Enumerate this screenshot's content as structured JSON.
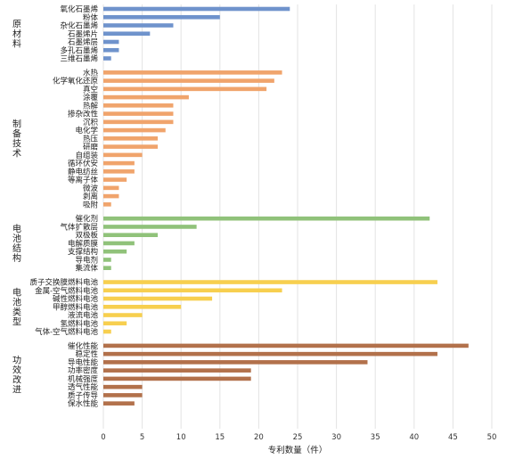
{
  "chart_data": {
    "type": "bar",
    "orientation": "horizontal",
    "xlabel": "专利数量（件）",
    "xlim": [
      0,
      50
    ],
    "xticks": [
      0,
      5,
      10,
      15,
      20,
      25,
      30,
      35,
      40,
      45,
      50
    ],
    "grid": true,
    "groups": [
      {
        "name": "原材料",
        "color": "#6f93cc",
        "categories": [
          "氧化石墨烯",
          "粉体",
          "杂化石墨烯",
          "石墨烯片",
          "石墨烯层",
          "多孔石墨烯",
          "三维石墨烯"
        ],
        "values": [
          24,
          15,
          9,
          6,
          2,
          2,
          1
        ]
      },
      {
        "name": "制备技术",
        "color": "#f0a46c",
        "categories": [
          "水热",
          "化学氧化还原",
          "真空",
          "涂覆",
          "热解",
          "掺杂改性",
          "沉积",
          "电化学",
          "热压",
          "研磨",
          "自组装",
          "循环伏安",
          "静电纺丝",
          "等离子体",
          "微波",
          "剥离",
          "吸附"
        ],
        "values": [
          23,
          22,
          21,
          11,
          9,
          9,
          9,
          8,
          7,
          7,
          5,
          4,
          4,
          3,
          2,
          2,
          1
        ]
      },
      {
        "name": "电池结构",
        "color": "#90c27a",
        "categories": [
          "催化剂",
          "气体扩散层",
          "双极板",
          "电解质膜",
          "支撑结构",
          "导电剂",
          "集流体"
        ],
        "values": [
          42,
          12,
          7,
          4,
          3,
          1,
          1
        ]
      },
      {
        "name": "电池类型",
        "color": "#f7cf4f",
        "categories": [
          "质子交换膜燃料电池",
          "金属-空气燃料电池",
          "碱性燃料电池",
          "甲醇燃料电池",
          "液流电池",
          "氢燃料电池",
          "气体-空气燃料电池"
        ],
        "values": [
          43,
          23,
          14,
          10,
          5,
          3,
          1
        ]
      },
      {
        "name": "功效改进",
        "color": "#b2714b",
        "categories": [
          "催化性能",
          "稳定性",
          "导电性能",
          "功率密度",
          "机械强度",
          "透气性能",
          "质子传导",
          "保水性能"
        ],
        "values": [
          47,
          43,
          34,
          19,
          19,
          5,
          5,
          4
        ]
      }
    ]
  }
}
